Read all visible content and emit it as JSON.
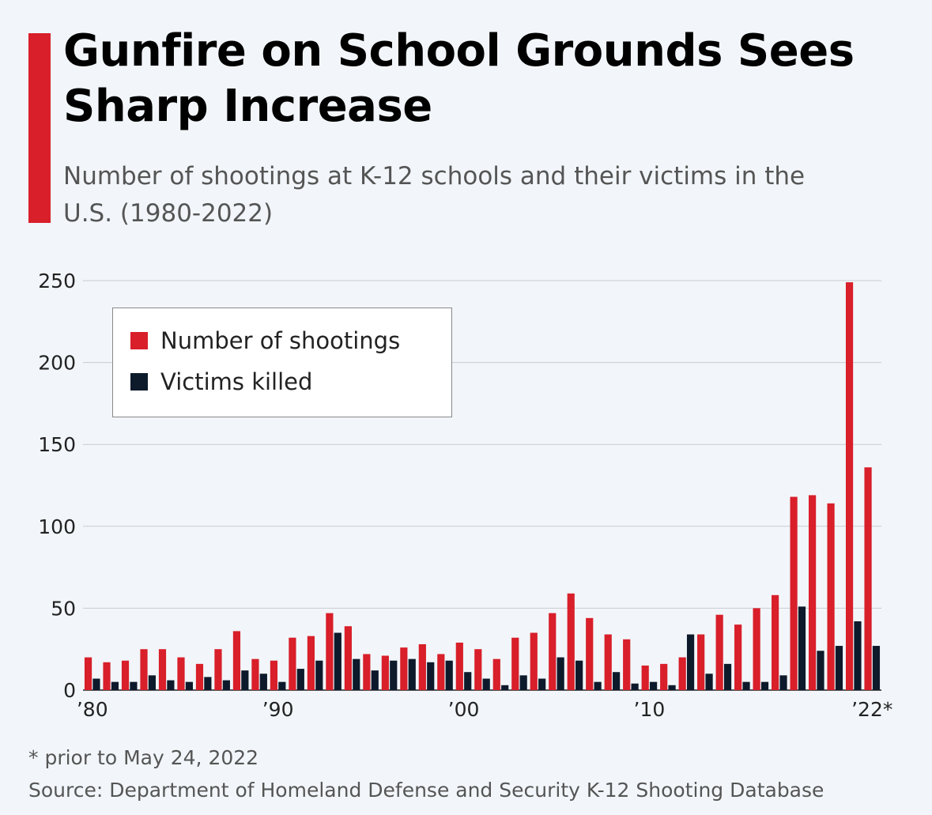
{
  "header": {
    "title": "Gunfire on School Grounds Sees Sharp Increase",
    "subtitle": "Number of shootings at K-12 schools and their victims in the U.S. (1980-2022)"
  },
  "footer": {
    "footnote": "* prior to May 24, 2022",
    "source": "Source: Department of Homeland Defense and Security K-12 Shooting Database"
  },
  "colors": {
    "accent": "#d81f2a",
    "shootings": "#d81f2a",
    "killed": "#0d1a2b",
    "grid": "#c8ccd0",
    "background": "#f2f6fa"
  },
  "chart_data": {
    "type": "bar",
    "grid": true,
    "legend_position": "top-left",
    "ylim": [
      0,
      250
    ],
    "yticks": [
      0,
      50,
      100,
      150,
      200,
      250
    ],
    "x_tick_labels": [
      {
        "year": 1980,
        "label": "’80"
      },
      {
        "year": 1990,
        "label": "’90"
      },
      {
        "year": 2000,
        "label": "’00"
      },
      {
        "year": 2010,
        "label": "’10"
      },
      {
        "year": 2022,
        "label": "’22*"
      }
    ],
    "categories": [
      1980,
      1981,
      1982,
      1983,
      1984,
      1985,
      1986,
      1987,
      1988,
      1989,
      1990,
      1991,
      1992,
      1993,
      1994,
      1995,
      1996,
      1997,
      1998,
      1999,
      2000,
      2001,
      2002,
      2003,
      2004,
      2005,
      2006,
      2007,
      2008,
      2009,
      2010,
      2011,
      2012,
      2013,
      2014,
      2015,
      2016,
      2017,
      2018,
      2019,
      2020,
      2021,
      2022
    ],
    "series": [
      {
        "name": "Number of shootings",
        "values": [
          20,
          17,
          18,
          25,
          25,
          20,
          16,
          25,
          36,
          19,
          18,
          32,
          33,
          47,
          39,
          22,
          21,
          26,
          28,
          22,
          29,
          25,
          19,
          32,
          35,
          47,
          59,
          44,
          34,
          31,
          15,
          16,
          20,
          34,
          46,
          40,
          50,
          58,
          118,
          119,
          114,
          249,
          136
        ]
      },
      {
        "name": "Victims killed",
        "values": [
          7,
          5,
          5,
          9,
          6,
          5,
          8,
          6,
          12,
          10,
          5,
          13,
          18,
          35,
          19,
          12,
          18,
          19,
          17,
          18,
          11,
          7,
          3,
          9,
          7,
          20,
          18,
          5,
          11,
          4,
          5,
          3,
          34,
          10,
          16,
          5,
          5,
          9,
          51,
          24,
          27,
          42,
          27
        ]
      }
    ]
  }
}
